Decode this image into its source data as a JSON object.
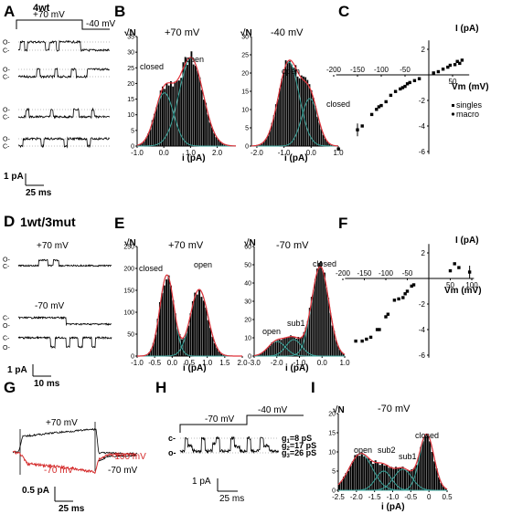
{
  "panels": {
    "A": "A",
    "B": "B",
    "C": "C",
    "D": "D",
    "E": "E",
    "F": "F",
    "G": "G",
    "H": "H",
    "I": "I"
  },
  "A": {
    "title": "4wt",
    "v1": "+70 mV",
    "v2": "-40 mV",
    "o": "O-",
    "c": "C-",
    "scale_i": "1 pA",
    "scale_t": "25 ms"
  },
  "B": {
    "ylabel": "√N",
    "left": {
      "title": "+70 mV",
      "closed": "closed",
      "open": "open",
      "xlabel": "i (pA)",
      "xticks": [
        "-1.0",
        "0.0",
        "1.0",
        "2.0"
      ],
      "yticks": [
        "0",
        "5",
        "10",
        "15",
        "20",
        "25",
        "30",
        "35"
      ]
    },
    "right": {
      "title": "-40 mV",
      "open": "open",
      "closed": "closed",
      "xlabel": "i (pA)",
      "xticks": [
        "-2.0",
        "-1.0",
        "0.0",
        "1.0"
      ],
      "yticks": [
        "0",
        "5",
        "10",
        "15",
        "20",
        "25",
        "30"
      ]
    }
  },
  "C": {
    "ylabel": "I (pA)",
    "xlabel": "Vm (mV)",
    "xticks": [
      "-200",
      "-150",
      "-100",
      "-50",
      "50"
    ],
    "yticks": [
      "2",
      "-2",
      "-4",
      "-6"
    ],
    "legend": [
      "singles",
      "macro"
    ]
  },
  "D": {
    "title": "1wt/3mut",
    "v1": "+70 mV",
    "v2": "-70 mV",
    "o": "O-",
    "c": "C-",
    "scale_i": "1 pA",
    "scale_t": "10 ms"
  },
  "E": {
    "ylabel": "√N",
    "left": {
      "title": "+70 mV",
      "closed": "closed",
      "open": "open",
      "xlabel": "i (pA)",
      "xticks": [
        "-1.0",
        "-0.5",
        "0.0",
        "0.5",
        "1.0",
        "1.5",
        "2.0"
      ],
      "yticks": [
        "0",
        "50",
        "100",
        "150",
        "200",
        "250"
      ]
    },
    "right": {
      "title": "-70 mV",
      "open": "open",
      "sub1": "sub1",
      "closed": "closed",
      "xlabel": "i (pA)",
      "xticks": [
        "-3.0",
        "-2.0",
        "-1.0",
        "0.0",
        "1.0"
      ],
      "yticks": [
        "0",
        "10",
        "20",
        "30",
        "40",
        "50",
        "60"
      ]
    }
  },
  "F": {
    "ylabel": "I (pA)",
    "xlabel": "Vm (mV)",
    "xticks": [
      "-200",
      "-150",
      "-100",
      "-50",
      "50",
      "100"
    ],
    "yticks": [
      "2",
      "-2",
      "-4",
      "-6"
    ]
  },
  "G": {
    "l1": "+70 mV",
    "l2": "-100 mV",
    "l3": "-70 mV",
    "l4": "-70 mV",
    "scale_i": "0.5 pA",
    "scale_t": "25 ms"
  },
  "H": {
    "v1": "-70 mV",
    "v2": "-40 mV",
    "c": "c-",
    "o": "o-",
    "g1": "g",
    "g1v": "=8 pS",
    "g2": "g",
    "g2v": "=17 pS",
    "g3": "g",
    "g3v": "=26 pS",
    "s1": "1",
    "s2": "2",
    "s3": "3",
    "scale_i": "1 pA",
    "scale_t": "25 ms"
  },
  "I": {
    "title": "-70 mV",
    "ylabel": "√N",
    "open": "open",
    "sub2": "sub2",
    "sub1": "sub1",
    "closed": "closed",
    "xlabel": "i (pA)",
    "xticks": [
      "-2.5",
      "-2.0",
      "-1.5",
      "-1.0",
      "-0.5",
      "0",
      "0.5"
    ],
    "yticks": [
      "0",
      "5",
      "10",
      "15",
      "20"
    ]
  },
  "colors": {
    "bars": "#000000",
    "fit": "#e0323a",
    "gauss": "#3aa39a",
    "red_trace": "#d42a2a"
  }
}
